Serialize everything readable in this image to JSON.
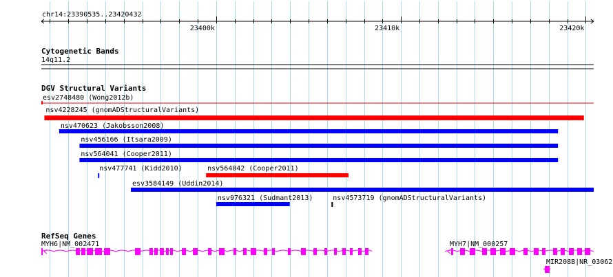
{
  "ruler": {
    "region": "chr14:23390535..23420432",
    "start": 23390535,
    "end": 23420432,
    "ticks": [
      {
        "pos": 23400000,
        "label": "23400k"
      },
      {
        "pos": 23410000,
        "label": "23410k"
      },
      {
        "pos": 23420000,
        "label": "23420k"
      }
    ]
  },
  "tracks": {
    "cytoband": {
      "title": "Cytogenetic Bands",
      "band": "14q11.2"
    },
    "dgv": {
      "title": "DGV Structural Variants",
      "colors": {
        "red": "#ff0000",
        "blue": "#0000ff"
      },
      "features": [
        {
          "label": "esv2748480 (Wong2012b)",
          "start": 23390535,
          "end": 23420432,
          "color": "red",
          "style": "line"
        },
        {
          "label": "nsv4228245 (gnomADStructuralVariants)",
          "start": 23390700,
          "end": 23419900,
          "color": "red",
          "style": "bar"
        },
        {
          "label": "nsv470623 (Jakobsson2008)",
          "start": 23391500,
          "end": 23418500,
          "color": "blue",
          "style": "bar"
        },
        {
          "label": "nsv456166 (Itsara2009)",
          "start": 23392600,
          "end": 23418500,
          "color": "blue",
          "style": "bar"
        },
        {
          "label": "nsv564041 (Cooper2011)",
          "start": 23392600,
          "end": 23418500,
          "color": "blue",
          "style": "bar"
        },
        {
          "label": "nsv477741 (Kidd2010)",
          "start": 23393600,
          "end": 23393660,
          "color": "blue",
          "style": "bar"
        },
        {
          "label": "nsv564042 (Cooper2011)",
          "start": 23399450,
          "end": 23407160,
          "color": "red",
          "style": "bar"
        },
        {
          "label": "esv3584149 (Uddin2014)",
          "start": 23395380,
          "end": 23420432,
          "color": "blue",
          "style": "bar"
        },
        {
          "label": "nsv976321 (Sudmant2013)",
          "start": 23400000,
          "end": 23403980,
          "color": "blue",
          "style": "bar"
        },
        {
          "label": "nsv4573719 (gnomADStructuralVariants)",
          "start": 23406240,
          "end": 23406270,
          "color": "black",
          "style": "bar"
        }
      ]
    },
    "refseq": {
      "title": "RefSeq Genes",
      "color": "#ff00ff",
      "genes": [
        {
          "label": "MYH6|NM_002471",
          "start": 23390535,
          "end": 23408500,
          "strand": "-"
        },
        {
          "label": "MYH7|NM_000257",
          "start": 23412500,
          "end": 23420432,
          "strand": "-"
        },
        {
          "label": "MIR208B|NR_03062",
          "start": 23417700,
          "end": 23418100,
          "strand": "-"
        }
      ]
    }
  }
}
